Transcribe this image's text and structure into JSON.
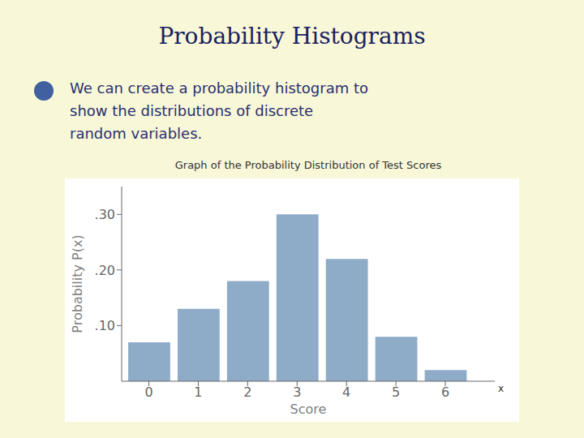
{
  "chart_data": {
    "type": "bar",
    "title": "Probability Histograms",
    "subtitle": "Graph of the Probability Distribution of Test Scores",
    "annotations": [
      "We can create a probability histogram to",
      "show the distributions of discrete",
      "random variables.",
      "x"
    ],
    "xlabel": "Score",
    "ylabel": "Probability P(x)",
    "x": [
      0,
      1,
      2,
      3,
      4,
      5,
      6
    ],
    "values": [
      0.07,
      0.13,
      0.18,
      0.3,
      0.22,
      0.08,
      0.02
    ],
    "color": "#8eacc8",
    "xlim": [
      -0.55,
      7.0
    ],
    "xticks": [
      0,
      1,
      2,
      3,
      4,
      5,
      6
    ],
    "ylim": [
      0,
      0.35
    ],
    "yticks": [
      {
        "value": 0.1,
        "label": ".10"
      },
      {
        "value": 0.2,
        "label": ".20"
      },
      {
        "value": 0.3,
        "label": ".30"
      }
    ],
    "grid": false
  }
}
